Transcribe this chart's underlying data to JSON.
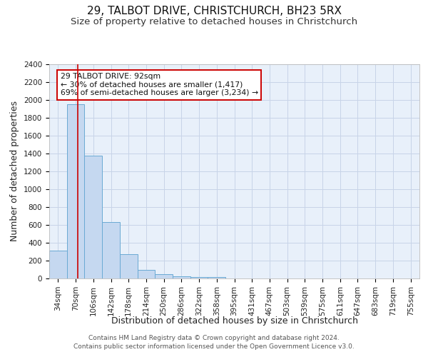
{
  "title": "29, TALBOT DRIVE, CHRISTCHURCH, BH23 5RX",
  "subtitle": "Size of property relative to detached houses in Christchurch",
  "xlabel": "Distribution of detached houses by size in Christchurch",
  "ylabel": "Number of detached properties",
  "footer_line1": "Contains HM Land Registry data © Crown copyright and database right 2024.",
  "footer_line2": "Contains public sector information licensed under the Open Government Licence v3.0.",
  "bin_labels": [
    "34sqm",
    "70sqm",
    "106sqm",
    "142sqm",
    "178sqm",
    "214sqm",
    "250sqm",
    "286sqm",
    "322sqm",
    "358sqm",
    "395sqm",
    "431sqm",
    "467sqm",
    "503sqm",
    "539sqm",
    "575sqm",
    "611sqm",
    "647sqm",
    "683sqm",
    "719sqm",
    "755sqm"
  ],
  "bar_values": [
    310,
    1950,
    1380,
    630,
    270,
    100,
    47,
    28,
    18,
    15,
    0,
    0,
    0,
    0,
    0,
    0,
    0,
    0,
    0,
    0,
    0
  ],
  "bar_color": "#c5d8f0",
  "bar_edge_color": "#6aaad4",
  "ylim": [
    0,
    2400
  ],
  "yticks": [
    0,
    200,
    400,
    600,
    800,
    1000,
    1200,
    1400,
    1600,
    1800,
    2000,
    2200,
    2400
  ],
  "vline_color": "#cc0000",
  "vline_pos": 1.62,
  "annotation_box_text": "29 TALBOT DRIVE: 92sqm\n← 30% of detached houses are smaller (1,417)\n69% of semi-detached houses are larger (3,234) →",
  "background_color": "#ffffff",
  "plot_bg_color": "#e8f0fa",
  "grid_color": "#c8d4e8",
  "title_fontsize": 11,
  "subtitle_fontsize": 9.5,
  "label_fontsize": 9,
  "tick_fontsize": 7.5,
  "annotation_fontsize": 7.8,
  "footer_fontsize": 6.5
}
